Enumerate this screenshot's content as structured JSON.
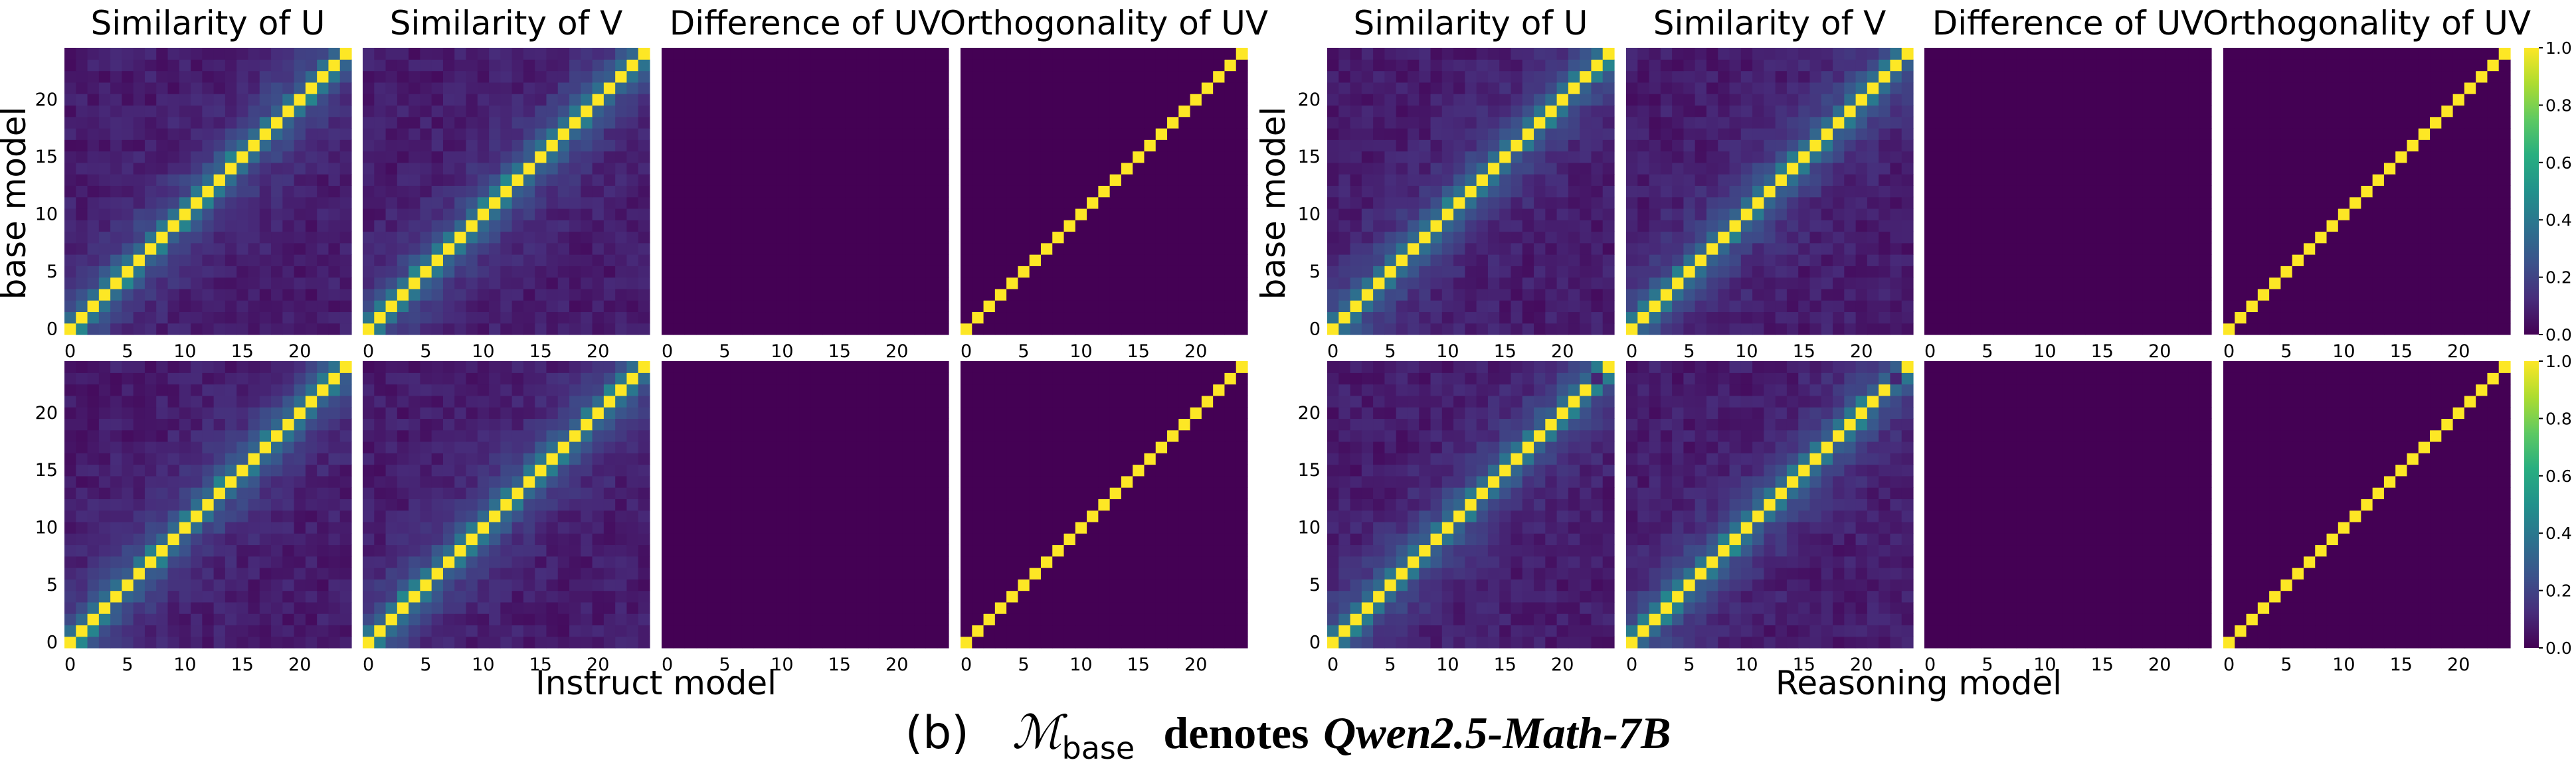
{
  "caption": {
    "label": "(b)",
    "symbol": "ℳ",
    "subscript": "base",
    "denotes": "denotes",
    "model": "Qwen2.5-Math-7B"
  },
  "colors": {
    "colormap": "viridis",
    "low": "#440154",
    "high": "#fde725"
  },
  "chart_data": [
    {
      "type": "heatmap",
      "group": "Instruct model",
      "xlabel": "Instruct model",
      "ylabel": "base model",
      "size": 25,
      "panel_titles": [
        "Similarity of U",
        "Similarity of V",
        "Difference of UV",
        "Orthogonality of UV"
      ],
      "x_ticks": [
        0,
        5,
        10,
        15,
        20
      ],
      "y_ticks": [
        0,
        5,
        10,
        15,
        20
      ],
      "color_range": [
        0.0,
        1.0
      ],
      "colorbar": false,
      "rows": [
        {
          "row": 1,
          "panels": [
            {
              "title": "Similarity of U",
              "pattern": "diagonal-with-offdiagonal-similarity",
              "diagonal": 1.0
            },
            {
              "title": "Similarity of V",
              "pattern": "diagonal-with-offdiagonal-similarity",
              "diagonal": 1.0
            },
            {
              "title": "Difference of UV",
              "pattern": "uniform",
              "value": 0.0
            },
            {
              "title": "Orthogonality of UV",
              "pattern": "identity",
              "diagonal": 1.0,
              "off_diagonal": 0.0
            }
          ]
        },
        {
          "row": 2,
          "panels": [
            {
              "title": "Similarity of U",
              "pattern": "diagonal-with-offdiagonal-similarity",
              "diagonal": 1.0
            },
            {
              "title": "Similarity of V",
              "pattern": "diagonal-with-offdiagonal-similarity",
              "diagonal": 1.0
            },
            {
              "title": "Difference of UV",
              "pattern": "uniform",
              "value": 0.0
            },
            {
              "title": "Orthogonality of UV",
              "pattern": "identity",
              "diagonal": 1.0,
              "off_diagonal": 0.0
            }
          ]
        }
      ]
    },
    {
      "type": "heatmap",
      "group": "Reasoning model",
      "xlabel": "Reasoning model",
      "ylabel": "base model",
      "size": 25,
      "panel_titles": [
        "Similarity of U",
        "Similarity of V",
        "Difference of UV",
        "Orthogonality of UV"
      ],
      "x_ticks": [
        0,
        5,
        10,
        15,
        20
      ],
      "y_ticks": [
        0,
        5,
        10,
        15,
        20
      ],
      "color_range": [
        0.0,
        1.0
      ],
      "colorbar": true,
      "colorbar_ticks": [
        "0.0",
        "0.2",
        "0.4",
        "0.6",
        "0.8",
        "1.0"
      ],
      "rows": [
        {
          "row": 1,
          "panels": [
            {
              "title": "Similarity of U",
              "pattern": "diagonal-with-offdiagonal-similarity",
              "diagonal": 1.0
            },
            {
              "title": "Similarity of V",
              "pattern": "diagonal-with-offdiagonal-similarity",
              "diagonal": 1.0
            },
            {
              "title": "Difference of UV",
              "pattern": "uniform",
              "value": 0.0
            },
            {
              "title": "Orthogonality of UV",
              "pattern": "identity",
              "diagonal": 1.0,
              "off_diagonal": 0.0
            }
          ]
        },
        {
          "row": 2,
          "panels": [
            {
              "title": "Similarity of U",
              "pattern": "diagonal-with-offdiagonal-similarity",
              "diagonal": 1.0,
              "dark_cell": [
                23,
                23
              ]
            },
            {
              "title": "Similarity of V",
              "pattern": "diagonal-with-offdiagonal-similarity",
              "diagonal": 1.0,
              "dark_cell": [
                23,
                23
              ]
            },
            {
              "title": "Difference of UV",
              "pattern": "uniform",
              "value": 0.0
            },
            {
              "title": "Orthogonality of UV",
              "pattern": "identity",
              "diagonal": 1.0,
              "off_diagonal": 0.0
            }
          ]
        }
      ]
    }
  ]
}
